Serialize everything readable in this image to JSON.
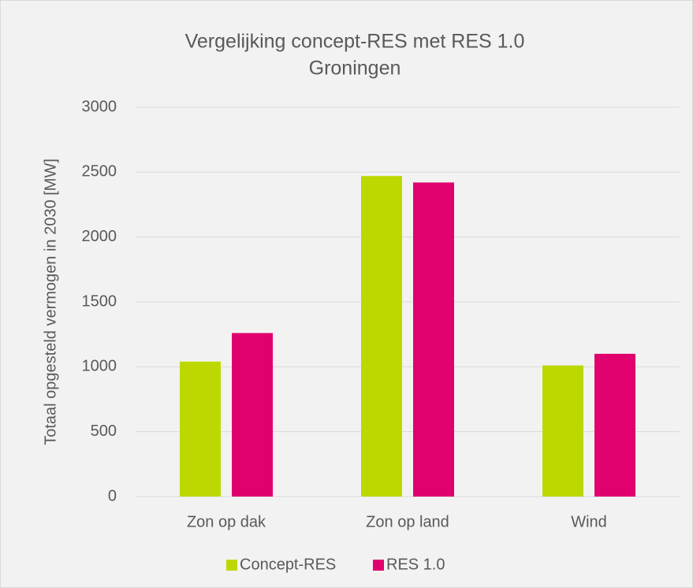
{
  "chart_data": {
    "type": "bar",
    "title": [
      "Vergelijking concept-RES met RES 1.0",
      "Groningen"
    ],
    "y_label": "Totaal opgesteld vermogen in 2030 [MW]",
    "categories": [
      "Zon op dak",
      "Zon op land",
      "Wind"
    ],
    "series": [
      {
        "name": "Concept-RES",
        "color": "#bdd800",
        "values": [
          1040,
          2470,
          1010
        ]
      },
      {
        "name": "RES 1.0",
        "color": "#e0006e",
        "values": [
          1260,
          2420,
          1100
        ]
      }
    ],
    "ylim": [
      0,
      3000
    ],
    "yticks": [
      0,
      500,
      1000,
      1500,
      2000,
      2500,
      3000
    ],
    "grid": true,
    "legend": "bottom"
  }
}
